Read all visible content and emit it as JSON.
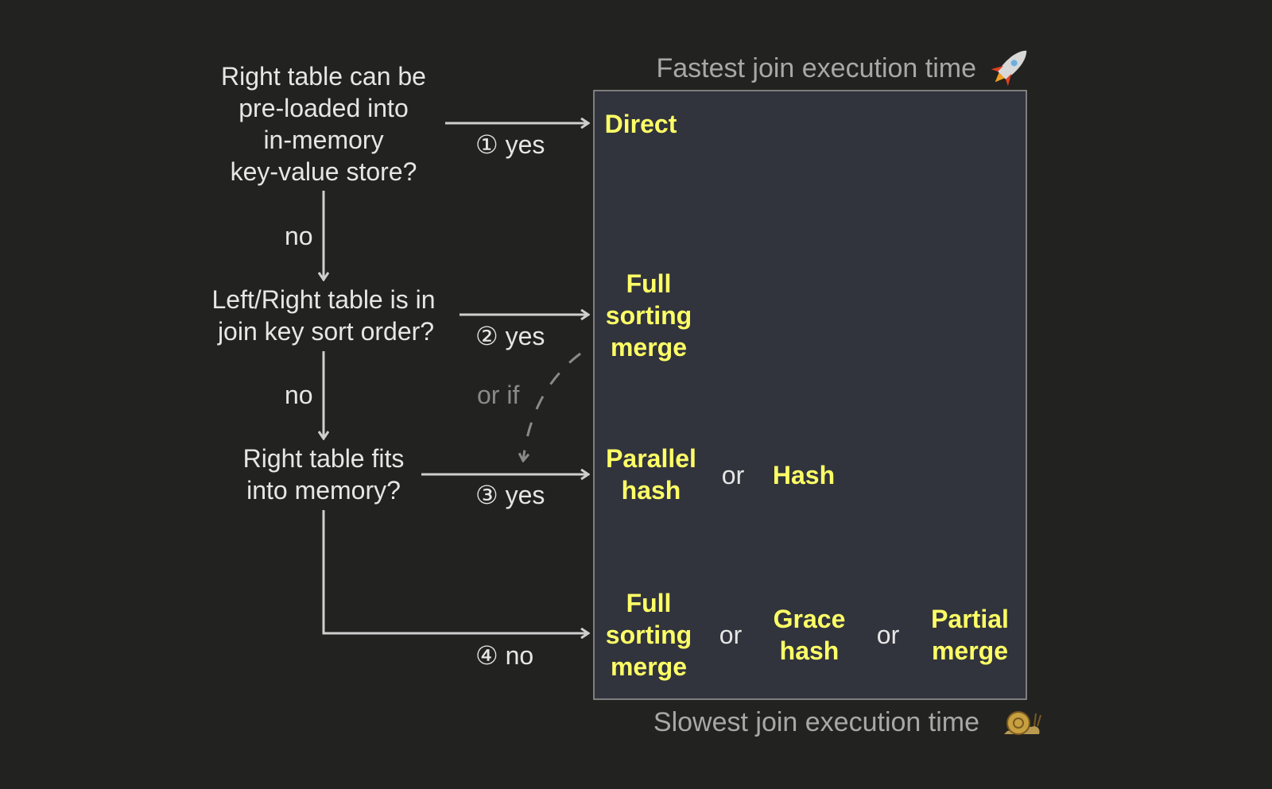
{
  "header": {
    "fastest": "Fastest join execution time",
    "slowest": "Slowest join execution time",
    "top_icon": "rocket-icon",
    "bottom_icon": "snail-icon"
  },
  "questions": [
    {
      "lines": [
        "Right table can be",
        "pre-loaded into",
        "in-memory",
        "key-value store?"
      ]
    },
    {
      "lines": [
        "Left/Right table is in",
        "join key sort order?"
      ]
    },
    {
      "lines": [
        "Right table fits",
        "into memory?"
      ]
    }
  ],
  "edges": {
    "yes1": "① yes",
    "yes2": "② yes",
    "yes3": "③ yes",
    "no4": "④  no",
    "no_a": "no",
    "no_b": "no",
    "or_if": "or if"
  },
  "algorithms": {
    "direct": "Direct",
    "full_sorting_merge": [
      "Full",
      "sorting",
      "merge"
    ],
    "parallel_hash": [
      "Parallel",
      "hash"
    ],
    "hash": "Hash",
    "grace_hash": [
      "Grace",
      "hash"
    ],
    "partial_merge": [
      "Partial",
      "merge"
    ],
    "or": "or"
  },
  "colors": {
    "background": "#222220",
    "panel": "#31343c",
    "algorithm": "#ffff66",
    "text": "#e6e6e6",
    "muted": "#8a8a8a"
  }
}
